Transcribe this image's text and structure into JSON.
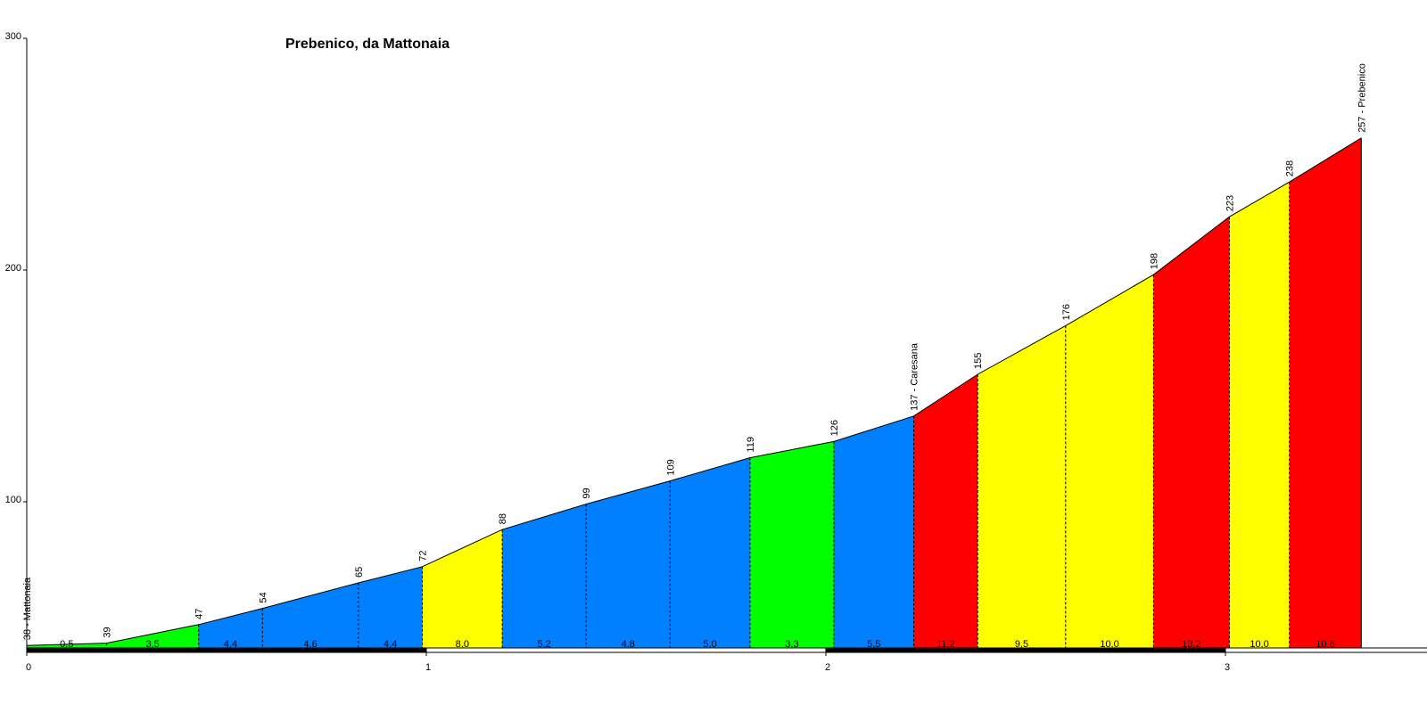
{
  "chart_data": {
    "type": "area",
    "title": "Prebenico, da Mattonaia",
    "xlabel": "",
    "ylabel": "",
    "xlim": [
      0,
      3.5
    ],
    "ylim": [
      35,
      300
    ],
    "x_ticks": [
      "0",
      "1",
      "2",
      "3"
    ],
    "y_ticks": [
      "100",
      "200",
      "300"
    ],
    "grid": false,
    "colors": {
      "green": "#00ff00",
      "blue": "#0080ff",
      "yellow": "#ffff00",
      "red": "#ff0000"
    },
    "points": [
      {
        "x": 0.0,
        "y": 38,
        "label": "38 - Mattonaia"
      },
      {
        "x": 0.2,
        "y": 39,
        "label": "39"
      },
      {
        "x": 0.43,
        "y": 47,
        "label": "47"
      },
      {
        "x": 0.59,
        "y": 54,
        "label": "54"
      },
      {
        "x": 0.83,
        "y": 65,
        "label": "65"
      },
      {
        "x": 0.99,
        "y": 72,
        "label": "72"
      },
      {
        "x": 1.19,
        "y": 88,
        "label": "88"
      },
      {
        "x": 1.4,
        "y": 99,
        "label": "99"
      },
      {
        "x": 1.61,
        "y": 109,
        "label": "109"
      },
      {
        "x": 1.81,
        "y": 119,
        "label": "119"
      },
      {
        "x": 2.02,
        "y": 126,
        "label": "126"
      },
      {
        "x": 2.22,
        "y": 137,
        "label": "137 - Caresana"
      },
      {
        "x": 2.38,
        "y": 155,
        "label": "155"
      },
      {
        "x": 2.6,
        "y": 176,
        "label": "176"
      },
      {
        "x": 2.82,
        "y": 198,
        "label": "198"
      },
      {
        "x": 3.01,
        "y": 223,
        "label": "223"
      },
      {
        "x": 3.16,
        "y": 238,
        "label": "238"
      },
      {
        "x": 3.34,
        "y": 257,
        "label": "257 - Prebenico"
      }
    ],
    "segments": [
      {
        "gradient": "0,5",
        "color": "green"
      },
      {
        "gradient": "3,5",
        "color": "green"
      },
      {
        "gradient": "4,4",
        "color": "blue"
      },
      {
        "gradient": "4,6",
        "color": "blue"
      },
      {
        "gradient": "4,4",
        "color": "blue"
      },
      {
        "gradient": "8,0",
        "color": "yellow"
      },
      {
        "gradient": "5,2",
        "color": "blue"
      },
      {
        "gradient": "4,8",
        "color": "blue"
      },
      {
        "gradient": "5,0",
        "color": "blue"
      },
      {
        "gradient": "3,3",
        "color": "green"
      },
      {
        "gradient": "5,5",
        "color": "blue"
      },
      {
        "gradient": "11,2",
        "color": "red"
      },
      {
        "gradient": "9,5",
        "color": "yellow"
      },
      {
        "gradient": "10,0",
        "color": "yellow"
      },
      {
        "gradient": "13,2",
        "color": "red"
      },
      {
        "gradient": "10,0",
        "color": "yellow"
      },
      {
        "gradient": "10,8",
        "color": "red"
      }
    ]
  }
}
